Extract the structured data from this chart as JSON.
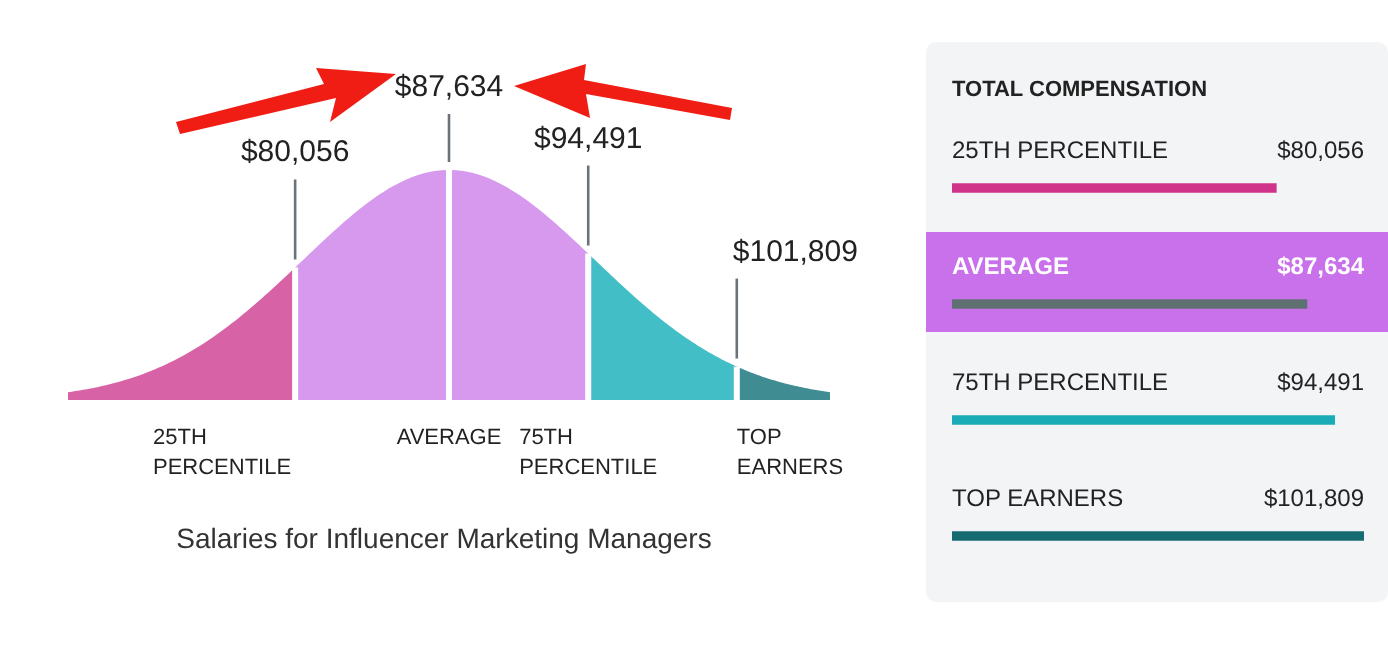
{
  "chart_data": [
    {
      "type": "other",
      "title": "Salaries for Influencer Marketing Managers",
      "categories": [
        "25TH PERCENTILE",
        "AVERAGE",
        "75TH PERCENTILE",
        "TOP EARNERS"
      ],
      "values": [
        80056,
        87634,
        94491,
        101809
      ],
      "value_labels": [
        "$80,056",
        "$87,634",
        "$94,491",
        "$101,809"
      ],
      "colors": [
        "#d862a6",
        "#d699ee",
        "#42bec6",
        "#3f8c92"
      ]
    },
    {
      "type": "bar",
      "orientation": "horizontal",
      "title": "TOTAL COMPENSATION",
      "xlim": [
        0,
        101809
      ],
      "categories": [
        "25TH PERCENTILE",
        "AVERAGE",
        "75TH PERCENTILE",
        "TOP EARNERS"
      ],
      "values": [
        80056,
        87634,
        94491,
        101809
      ],
      "value_labels": [
        "$80,056",
        "$87,634",
        "$94,491",
        "$101,809"
      ],
      "colors": [
        "#d0338a",
        "#5f7072",
        "#1aacb6",
        "#176c72"
      ],
      "bands": [
        {
          "axis": "y",
          "from": "AVERAGE",
          "to": "AVERAGE",
          "color": "#c971ea"
        }
      ]
    }
  ]
}
